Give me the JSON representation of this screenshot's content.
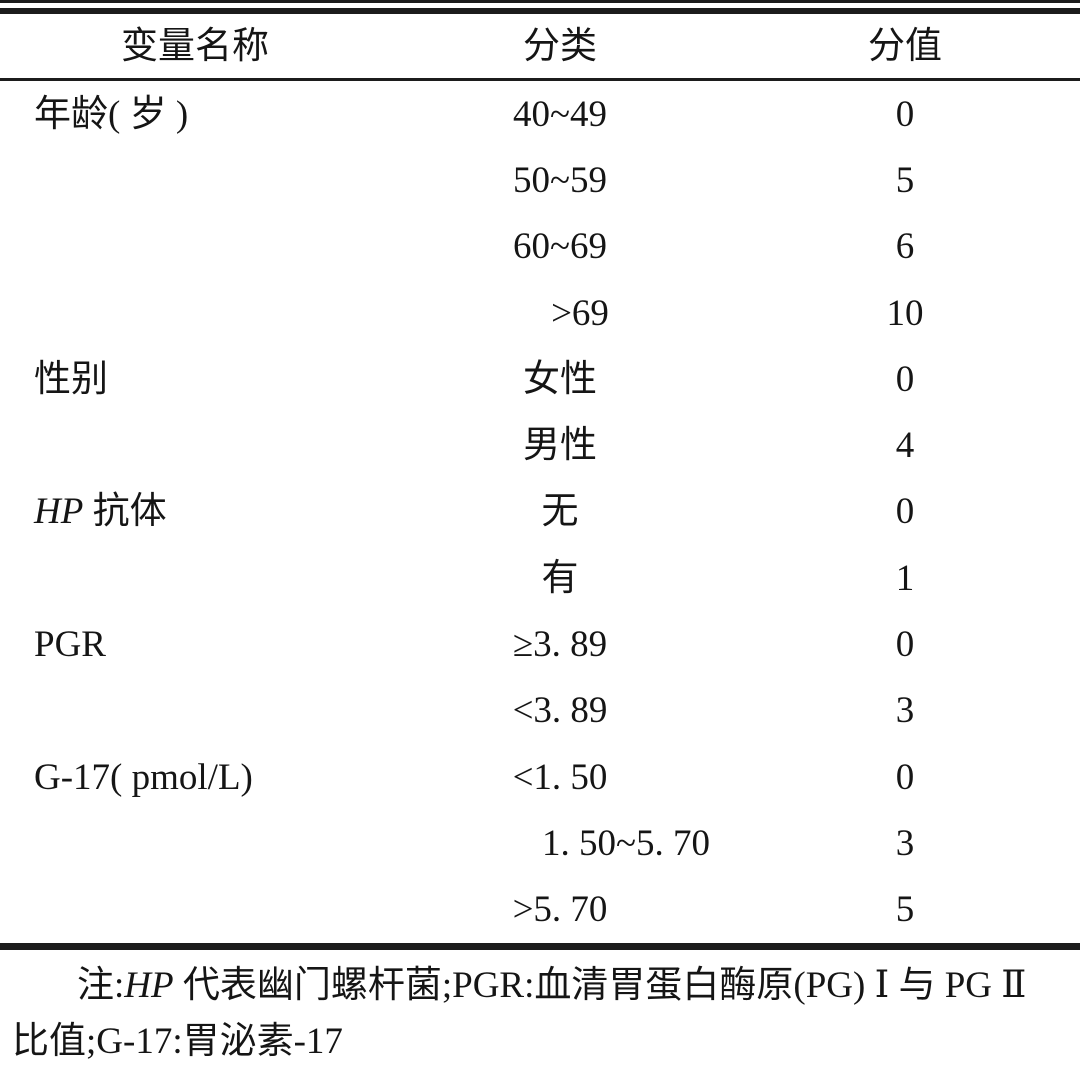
{
  "table": {
    "headers": {
      "variable": "变量名称",
      "category": "分类",
      "score": "分值"
    },
    "rows": [
      {
        "variable_italic": "",
        "variable": "年龄( 岁 )",
        "category": "40~49",
        "score": "0"
      },
      {
        "variable_italic": "",
        "variable": "",
        "category": "50~59",
        "score": "5"
      },
      {
        "variable_italic": "",
        "variable": "",
        "category": "60~69",
        "score": "6"
      },
      {
        "variable_italic": "",
        "variable": "",
        "category": ">69",
        "score": "10"
      },
      {
        "variable_italic": "",
        "variable": "性别",
        "category": "女性",
        "score": "0"
      },
      {
        "variable_italic": "",
        "variable": "",
        "category": "男性",
        "score": "4"
      },
      {
        "variable_italic": "HP",
        "variable": " 抗体",
        "category": "无",
        "score": "0"
      },
      {
        "variable_italic": "",
        "variable": "",
        "category": "有",
        "score": "1"
      },
      {
        "variable_italic": "",
        "variable": "PGR",
        "category": "≥3. 89",
        "score": "0"
      },
      {
        "variable_italic": "",
        "variable": "",
        "category": "<3. 89",
        "score": "3"
      },
      {
        "variable_italic": "",
        "variable": "G-17( pmol/L)",
        "category": "<1. 50",
        "score": "0"
      },
      {
        "variable_italic": "",
        "variable": "",
        "category": "1. 50~5. 70",
        "score": "3"
      },
      {
        "variable_italic": "",
        "variable": "",
        "category": ">5. 70",
        "score": "5"
      }
    ]
  },
  "note": {
    "prefix": "注:",
    "italic": "HP",
    "line1_rest": " 代表幽门螺杆菌;PGR:血清胃蛋白酶原(PG) Ⅰ 与 PG Ⅱ",
    "line2": "比值;G-17:胃泌素-17"
  },
  "colors": {
    "text": "#151515",
    "rule": "#1c1c1c",
    "background": "#ffffff"
  }
}
